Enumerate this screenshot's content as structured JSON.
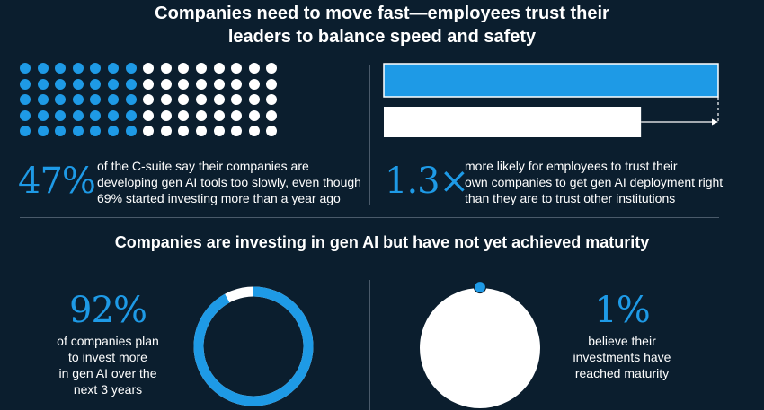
{
  "colors": {
    "background": "#0b1e2e",
    "accent": "#1e9ae6",
    "white": "#ffffff",
    "divider": "#4a5a6a"
  },
  "header": {
    "title_line1": "Companies need to move fast—employees trust their",
    "title_line2": "leaders to balance speed and safety"
  },
  "stat_csuite": {
    "value": "47%",
    "desc_line1": "of the C-suite say their companies are",
    "desc_line2": "developing gen AI tools too slowly, even though",
    "desc_line3": "69% started investing more than a year ago",
    "dot_grid": {
      "rows": 5,
      "cols": 15,
      "filled_percent": 47
    }
  },
  "stat_trust": {
    "value": "1.3×",
    "desc_line1": "more likely for employees to trust their",
    "desc_line2": "own companies to get gen AI deployment right",
    "desc_line3": "than they are to trust other institutions",
    "bars": {
      "companies_relative": 1.3,
      "institutions_relative": 1.0
    }
  },
  "subheader": {
    "title": "Companies are investing in gen AI but have not yet achieved maturity"
  },
  "stat_invest": {
    "value": "92%",
    "desc_line1": "of companies plan",
    "desc_line2": "to invest more",
    "desc_line3": "in gen AI over the",
    "desc_line4": "next 3 years",
    "ring_percent": 92
  },
  "stat_maturity": {
    "value": "1%",
    "desc_line1": "believe their",
    "desc_line2": "investments have",
    "desc_line3": "reached maturity",
    "dot_percent": 1
  }
}
